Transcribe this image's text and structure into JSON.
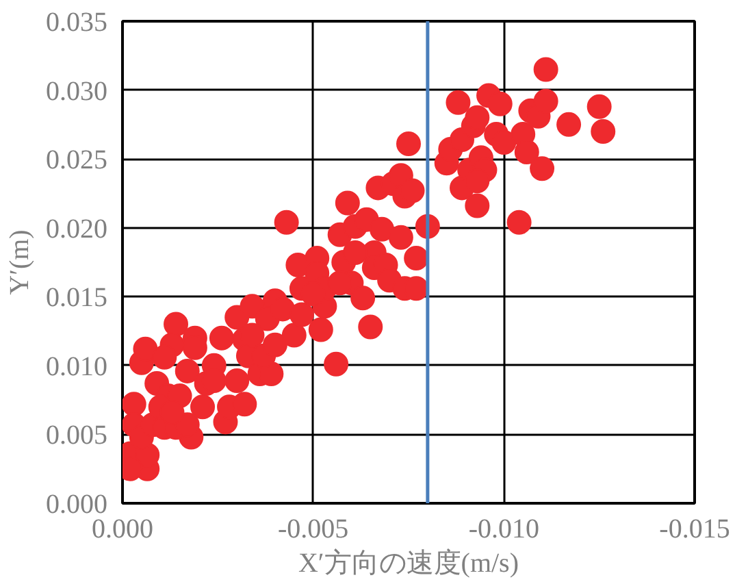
{
  "chart_data": {
    "type": "scatter",
    "xlabel": "X′方向の速度(m/s)",
    "ylabel": "Y′(m)",
    "xlim": [
      0,
      -0.015
    ],
    "ylim": [
      0,
      0.035
    ],
    "xticks": [
      {
        "value": 0,
        "label": "0.000"
      },
      {
        "value": -0.005,
        "label": "-0.005"
      },
      {
        "value": -0.01,
        "label": "-0.010"
      },
      {
        "value": -0.015,
        "label": "-0.015"
      }
    ],
    "yticks": [
      {
        "value": 0,
        "label": "0.000"
      },
      {
        "value": 0.005,
        "label": "0.005"
      },
      {
        "value": 0.01,
        "label": "0.010"
      },
      {
        "value": 0.015,
        "label": "0.015"
      },
      {
        "value": 0.02,
        "label": "0.020"
      },
      {
        "value": 0.025,
        "label": "0.025"
      },
      {
        "value": 0.03,
        "label": "0.030"
      },
      {
        "value": 0.035,
        "label": "0.035"
      }
    ],
    "grid": true,
    "marker": "circle",
    "ref_lines": [
      {
        "axis": "x",
        "value": -0.008,
        "color": "#4a7ebb"
      }
    ],
    "series": [
      {
        "color": "#ee2a2e",
        "x": [
          -0.0002,
          -0.00065,
          -0.00065,
          -0.0002,
          -0.0003,
          -0.0003,
          -0.0005,
          -0.0005,
          -0.0006,
          -0.0009,
          -0.0008,
          -0.0011,
          -0.0012,
          -0.0014,
          -0.0013,
          -0.0011,
          -0.0017,
          -0.0015,
          -0.0018,
          -0.0014,
          -0.0017,
          -0.0019,
          -0.0019,
          -0.0021,
          -0.0022,
          -0.0024,
          -0.0024,
          -0.0026,
          -0.0027,
          -0.0028,
          -0.003,
          -0.0032,
          -0.003,
          -0.0032,
          -0.0034,
          -0.0033,
          -0.0036,
          -0.0039,
          -0.0037,
          -0.004,
          -0.004,
          -0.0038,
          -0.0042,
          -0.0045,
          -0.0043,
          -0.0047,
          -0.0046,
          -0.0047,
          -0.0051,
          -0.0051,
          -0.0052,
          -0.0053,
          -0.0053,
          -0.0056,
          -0.0057,
          -0.0059,
          -0.0058,
          -0.006,
          -0.0061,
          -0.0063,
          -0.0064,
          -0.0065,
          -0.0066,
          -0.0066,
          -0.0068,
          -0.0067,
          -0.0069,
          -0.007,
          -0.0071,
          -0.0073,
          -0.0073,
          -0.0074,
          -0.0075,
          -0.0074,
          -0.0076,
          -0.0077,
          -0.0077,
          -0.008,
          -0.0085,
          -0.0086,
          -0.0088,
          -0.0089,
          -0.0089,
          -0.0091,
          -0.0092,
          -0.0093,
          -0.0094,
          -0.0095,
          -0.0096,
          -0.0098,
          -0.0099,
          -0.01,
          -0.0104,
          -0.0105,
          -0.0106,
          -0.0107,
          -0.0109,
          -0.011,
          -0.0111,
          -0.0111,
          -0.0117,
          -0.0125,
          -0.0126,
          -0.005,
          -0.0034,
          -0.001,
          -0.0013,
          -0.0061,
          -0.0057,
          -0.0093,
          -0.0093
        ],
        "values": [
          0.0036,
          0.0025,
          0.0035,
          0.0025,
          0.0072,
          0.0057,
          0.0048,
          0.0102,
          0.0112,
          0.0087,
          0.0057,
          0.0055,
          0.0078,
          0.013,
          0.0115,
          0.0106,
          0.0096,
          0.0078,
          0.0048,
          0.0055,
          0.0057,
          0.012,
          0.0113,
          0.007,
          0.0087,
          0.01,
          0.0089,
          0.012,
          0.0059,
          0.007,
          0.0089,
          0.0072,
          0.0135,
          0.0119,
          0.0143,
          0.0107,
          0.0094,
          0.0094,
          0.0107,
          0.0115,
          0.0147,
          0.0134,
          0.0141,
          0.0122,
          0.0204,
          0.0137,
          0.0173,
          0.0156,
          0.0178,
          0.0167,
          0.0126,
          0.0143,
          0.0156,
          0.0101,
          0.0195,
          0.0218,
          0.0175,
          0.016,
          0.0201,
          0.0149,
          0.0206,
          0.0128,
          0.0182,
          0.0171,
          0.0199,
          0.0229,
          0.0173,
          0.0162,
          0.0232,
          0.0238,
          0.0193,
          0.0223,
          0.0261,
          0.0156,
          0.0227,
          0.0156,
          0.0178,
          0.0201,
          0.0247,
          0.0257,
          0.0291,
          0.0264,
          0.0229,
          0.0242,
          0.0274,
          0.0216,
          0.0251,
          0.0242,
          0.0296,
          0.0268,
          0.029,
          0.0262,
          0.0204,
          0.0268,
          0.0255,
          0.0285,
          0.0281,
          0.0243,
          0.0292,
          0.0315,
          0.0275,
          0.0288,
          0.027,
          0.0152,
          0.0122,
          0.007,
          0.0066,
          0.0182,
          0.016,
          0.0234,
          0.028
        ]
      }
    ]
  }
}
